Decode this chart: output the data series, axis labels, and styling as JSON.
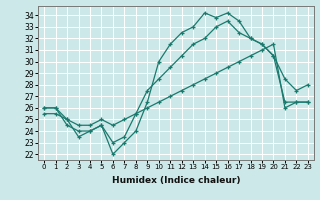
{
  "xlabel": "Humidex (Indice chaleur)",
  "bg_color": "#cde8e8",
  "line_color": "#1a7a6e",
  "grid_color": "#b8d8d8",
  "xlim": [
    -0.5,
    23.5
  ],
  "ylim": [
    21.5,
    34.8
  ],
  "yticks": [
    22,
    23,
    24,
    25,
    26,
    27,
    28,
    29,
    30,
    31,
    32,
    33,
    34
  ],
  "xticks": [
    0,
    1,
    2,
    3,
    4,
    5,
    6,
    7,
    8,
    9,
    10,
    11,
    12,
    13,
    14,
    15,
    16,
    17,
    18,
    19,
    20,
    21,
    22,
    23
  ],
  "line1_x": [
    0,
    1,
    2,
    3,
    4,
    5,
    6,
    7,
    8,
    9,
    10,
    11,
    12,
    13,
    14,
    15,
    16,
    17,
    18,
    19,
    20,
    21,
    22,
    23
  ],
  "line1_y": [
    26.0,
    26.0,
    25.0,
    23.5,
    24.0,
    24.5,
    22.0,
    23.0,
    24.0,
    26.5,
    30.0,
    31.5,
    32.5,
    33.0,
    34.2,
    33.8,
    34.2,
    33.5,
    32.0,
    31.5,
    30.5,
    28.5,
    27.5,
    28.0
  ],
  "line2_x": [
    0,
    1,
    2,
    3,
    4,
    5,
    6,
    7,
    8,
    9,
    10,
    11,
    12,
    13,
    14,
    15,
    16,
    17,
    18,
    19,
    20,
    21,
    22,
    23
  ],
  "line2_y": [
    26.0,
    26.0,
    24.5,
    24.0,
    24.0,
    24.5,
    23.0,
    23.5,
    25.5,
    27.5,
    28.5,
    29.5,
    30.5,
    31.5,
    32.0,
    33.0,
    33.5,
    32.5,
    32.0,
    31.5,
    30.5,
    26.5,
    26.5,
    26.5
  ],
  "line3_x": [
    0,
    1,
    2,
    3,
    4,
    5,
    6,
    7,
    8,
    9,
    10,
    11,
    12,
    13,
    14,
    15,
    16,
    17,
    18,
    19,
    20,
    21,
    22,
    23
  ],
  "line3_y": [
    25.5,
    25.5,
    25.0,
    24.5,
    24.5,
    25.0,
    24.5,
    25.0,
    25.5,
    26.0,
    26.5,
    27.0,
    27.5,
    28.0,
    28.5,
    29.0,
    29.5,
    30.0,
    30.5,
    31.0,
    31.5,
    26.0,
    26.5,
    26.5
  ]
}
